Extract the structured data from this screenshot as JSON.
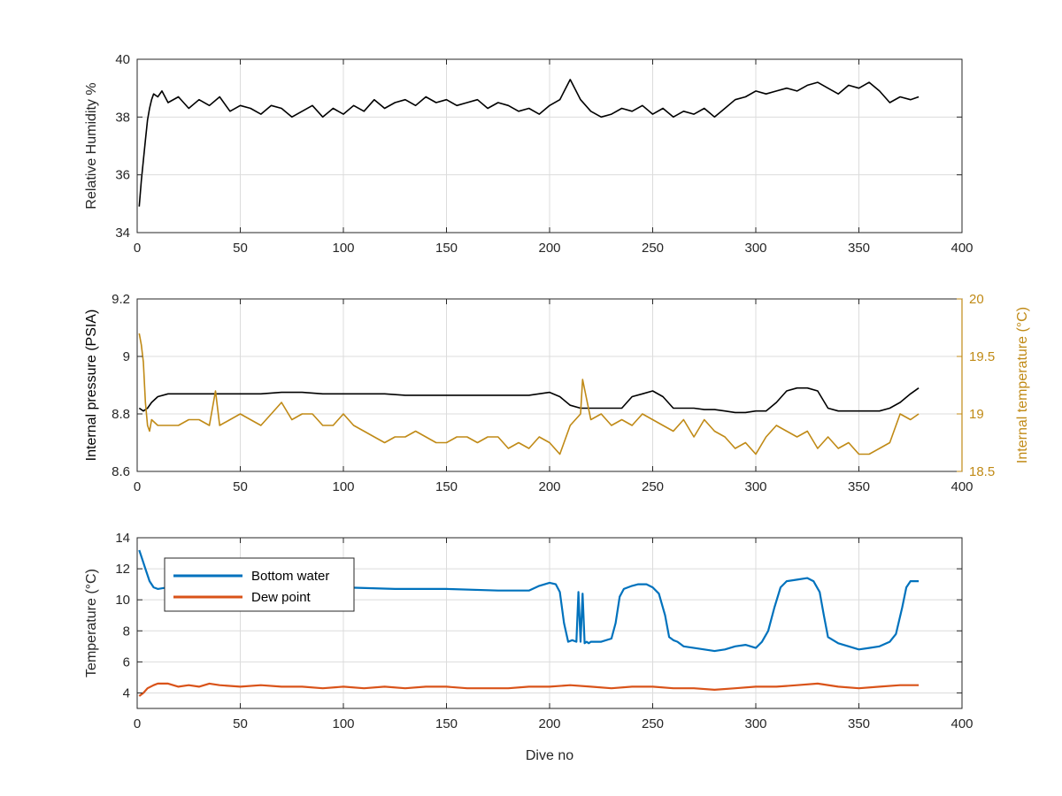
{
  "chart_data": [
    {
      "type": "line",
      "title": "",
      "xlabel": "",
      "ylabel": "Relative Humidity %",
      "xlim": [
        0,
        400
      ],
      "ylim": [
        34,
        40
      ],
      "xticks": [
        0,
        50,
        100,
        150,
        200,
        250,
        300,
        350,
        400
      ],
      "yticks": [
        34,
        36,
        38,
        40
      ],
      "grid": true,
      "series": [
        {
          "color": "#000000",
          "x": [
            1,
            2,
            3,
            4,
            5,
            6,
            7,
            8,
            10,
            12,
            15,
            20,
            25,
            30,
            35,
            40,
            45,
            50,
            55,
            60,
            65,
            70,
            75,
            80,
            85,
            90,
            95,
            100,
            105,
            110,
            115,
            120,
            125,
            130,
            135,
            140,
            145,
            150,
            155,
            160,
            165,
            170,
            175,
            180,
            185,
            190,
            195,
            200,
            205,
            210,
            215,
            220,
            225,
            230,
            235,
            240,
            245,
            250,
            255,
            260,
            265,
            270,
            275,
            280,
            285,
            290,
            295,
            300,
            305,
            310,
            315,
            320,
            325,
            330,
            335,
            340,
            345,
            350,
            355,
            360,
            365,
            370,
            375,
            379
          ],
          "y": [
            34.9,
            35.8,
            36.5,
            37.2,
            37.9,
            38.3,
            38.6,
            38.8,
            38.7,
            38.9,
            38.5,
            38.7,
            38.3,
            38.6,
            38.4,
            38.7,
            38.2,
            38.4,
            38.3,
            38.1,
            38.4,
            38.3,
            38.0,
            38.2,
            38.4,
            38.0,
            38.3,
            38.1,
            38.4,
            38.2,
            38.6,
            38.3,
            38.5,
            38.6,
            38.4,
            38.7,
            38.5,
            38.6,
            38.4,
            38.5,
            38.6,
            38.3,
            38.5,
            38.4,
            38.2,
            38.3,
            38.1,
            38.4,
            38.6,
            39.3,
            38.6,
            38.2,
            38.0,
            38.1,
            38.3,
            38.2,
            38.4,
            38.1,
            38.3,
            38.0,
            38.2,
            38.1,
            38.3,
            38.0,
            38.3,
            38.6,
            38.7,
            38.9,
            38.8,
            38.9,
            39.0,
            38.9,
            39.1,
            39.2,
            39.0,
            38.8,
            39.1,
            39.0,
            39.2,
            38.9,
            38.5,
            38.7,
            38.6,
            38.7
          ]
        }
      ]
    },
    {
      "type": "line",
      "title": "",
      "xlabel": "",
      "ylabel": "Internal pressure (PSIA)",
      "ylabel_right": "Internal temperature (°C)",
      "xlim": [
        0,
        400
      ],
      "ylim": [
        8.6,
        9.2
      ],
      "ylim_right": [
        18.5,
        20
      ],
      "xticks": [
        0,
        50,
        100,
        150,
        200,
        250,
        300,
        350,
        400
      ],
      "yticks": [
        8.6,
        8.8,
        9,
        9.2
      ],
      "yticks_labels": [
        "8.6",
        "8.8",
        "9",
        "9.2"
      ],
      "yticks_right": [
        18.5,
        19,
        19.5,
        20
      ],
      "yticks_right_labels": [
        "18.5",
        "19",
        "19.5",
        "20"
      ],
      "grid": true,
      "series": [
        {
          "axis": "left",
          "color": "#000000",
          "x": [
            1,
            3,
            5,
            7,
            10,
            15,
            20,
            30,
            40,
            50,
            60,
            70,
            80,
            90,
            100,
            110,
            120,
            130,
            140,
            150,
            160,
            170,
            180,
            190,
            200,
            205,
            210,
            215,
            220,
            225,
            230,
            235,
            240,
            245,
            250,
            255,
            260,
            265,
            270,
            275,
            280,
            285,
            290,
            295,
            300,
            305,
            310,
            315,
            320,
            325,
            330,
            335,
            340,
            345,
            350,
            355,
            360,
            365,
            370,
            375,
            379
          ],
          "y": [
            8.82,
            8.81,
            8.82,
            8.84,
            8.86,
            8.87,
            8.87,
            8.87,
            8.87,
            8.87,
            8.87,
            8.875,
            8.875,
            8.87,
            8.87,
            8.87,
            8.87,
            8.865,
            8.865,
            8.865,
            8.865,
            8.865,
            8.865,
            8.865,
            8.875,
            8.86,
            8.83,
            8.82,
            8.82,
            8.82,
            8.82,
            8.82,
            8.86,
            8.87,
            8.88,
            8.86,
            8.82,
            8.82,
            8.82,
            8.815,
            8.815,
            8.81,
            8.805,
            8.805,
            8.81,
            8.81,
            8.84,
            8.88,
            8.89,
            8.89,
            8.88,
            8.82,
            8.81,
            8.81,
            8.81,
            8.81,
            8.81,
            8.82,
            8.84,
            8.87,
            8.89
          ]
        },
        {
          "axis": "right",
          "color": "#c08a16",
          "x": [
            1,
            2,
            3,
            4,
            5,
            6,
            7,
            10,
            15,
            20,
            25,
            30,
            35,
            38,
            40,
            45,
            50,
            55,
            60,
            65,
            70,
            75,
            80,
            85,
            90,
            95,
            100,
            105,
            110,
            115,
            120,
            125,
            130,
            135,
            140,
            145,
            150,
            155,
            160,
            165,
            170,
            175,
            180,
            185,
            190,
            195,
            200,
            205,
            210,
            215,
            216,
            220,
            225,
            230,
            235,
            240,
            245,
            250,
            255,
            260,
            265,
            270,
            275,
            280,
            285,
            290,
            295,
            300,
            305,
            310,
            315,
            320,
            325,
            330,
            335,
            340,
            345,
            350,
            355,
            360,
            365,
            370,
            375,
            379
          ],
          "y": [
            19.7,
            19.6,
            19.45,
            19.1,
            18.9,
            18.85,
            18.95,
            18.9,
            18.9,
            18.9,
            18.95,
            18.95,
            18.9,
            19.2,
            18.9,
            18.95,
            19.0,
            18.95,
            18.9,
            19.0,
            19.1,
            18.95,
            19.0,
            19.0,
            18.9,
            18.9,
            19.0,
            18.9,
            18.85,
            18.8,
            18.75,
            18.8,
            18.8,
            18.85,
            18.8,
            18.75,
            18.75,
            18.8,
            18.8,
            18.75,
            18.8,
            18.8,
            18.7,
            18.75,
            18.7,
            18.8,
            18.75,
            18.65,
            18.9,
            19.0,
            19.3,
            18.95,
            19.0,
            18.9,
            18.95,
            18.9,
            19.0,
            18.95,
            18.9,
            18.85,
            18.95,
            18.8,
            18.95,
            18.85,
            18.8,
            18.7,
            18.75,
            18.65,
            18.8,
            18.9,
            18.85,
            18.8,
            18.85,
            18.7,
            18.8,
            18.7,
            18.75,
            18.65,
            18.65,
            18.7,
            18.75,
            19.0,
            18.95,
            19.0
          ]
        }
      ]
    },
    {
      "type": "line",
      "title": "",
      "xlabel": "Dive no",
      "ylabel": "Temperature (°C)",
      "xlim": [
        0,
        400
      ],
      "ylim": [
        3,
        14
      ],
      "xticks": [
        0,
        50,
        100,
        150,
        200,
        250,
        300,
        350,
        400
      ],
      "yticks": [
        4,
        6,
        8,
        10,
        12,
        14
      ],
      "grid": true,
      "legend": "top-left",
      "series": [
        {
          "name": "Bottom water",
          "color": "#0072bd",
          "x": [
            1,
            2,
            4,
            6,
            8,
            10,
            15,
            20,
            25,
            50,
            75,
            100,
            125,
            150,
            175,
            190,
            195,
            200,
            203,
            205,
            207,
            209,
            211,
            213,
            214,
            215,
            216,
            217,
            218,
            219,
            220,
            225,
            230,
            232,
            234,
            236,
            238,
            240,
            243,
            247,
            250,
            253,
            256,
            258,
            260,
            262,
            265,
            270,
            275,
            280,
            285,
            290,
            295,
            300,
            303,
            306,
            309,
            312,
            315,
            320,
            325,
            328,
            331,
            333,
            335,
            340,
            345,
            350,
            355,
            360,
            365,
            368,
            371,
            373,
            375,
            379
          ],
          "y": [
            13.2,
            12.8,
            12.0,
            11.2,
            10.8,
            10.7,
            10.8,
            11.0,
            10.8,
            10.9,
            10.8,
            10.8,
            10.7,
            10.7,
            10.6,
            10.6,
            10.9,
            11.1,
            11.0,
            10.5,
            8.5,
            7.3,
            7.4,
            7.3,
            10.5,
            7.3,
            10.4,
            7.2,
            7.3,
            7.2,
            7.3,
            7.3,
            7.5,
            8.5,
            10.2,
            10.7,
            10.8,
            10.9,
            11.0,
            11.0,
            10.8,
            10.4,
            9.0,
            7.6,
            7.4,
            7.3,
            7.0,
            6.9,
            6.8,
            6.7,
            6.8,
            7.0,
            7.1,
            6.9,
            7.3,
            8.0,
            9.5,
            10.8,
            11.2,
            11.3,
            11.4,
            11.2,
            10.5,
            9.0,
            7.6,
            7.2,
            7.0,
            6.8,
            6.9,
            7.0,
            7.3,
            7.8,
            9.5,
            10.8,
            11.2,
            11.2
          ]
        },
        {
          "name": "Dew point",
          "color": "#d95319",
          "x": [
            1,
            3,
            5,
            8,
            10,
            15,
            20,
            25,
            30,
            35,
            40,
            50,
            60,
            70,
            80,
            90,
            100,
            110,
            120,
            130,
            140,
            150,
            160,
            170,
            180,
            190,
            200,
            210,
            220,
            230,
            240,
            250,
            260,
            270,
            280,
            290,
            300,
            310,
            320,
            330,
            340,
            350,
            360,
            370,
            379
          ],
          "y": [
            3.8,
            4.0,
            4.3,
            4.5,
            4.6,
            4.6,
            4.4,
            4.5,
            4.4,
            4.6,
            4.5,
            4.4,
            4.5,
            4.4,
            4.4,
            4.3,
            4.4,
            4.3,
            4.4,
            4.3,
            4.4,
            4.4,
            4.3,
            4.3,
            4.3,
            4.4,
            4.4,
            4.5,
            4.4,
            4.3,
            4.4,
            4.4,
            4.3,
            4.3,
            4.2,
            4.3,
            4.4,
            4.4,
            4.5,
            4.6,
            4.4,
            4.3,
            4.4,
            4.5,
            4.5
          ]
        }
      ]
    }
  ]
}
